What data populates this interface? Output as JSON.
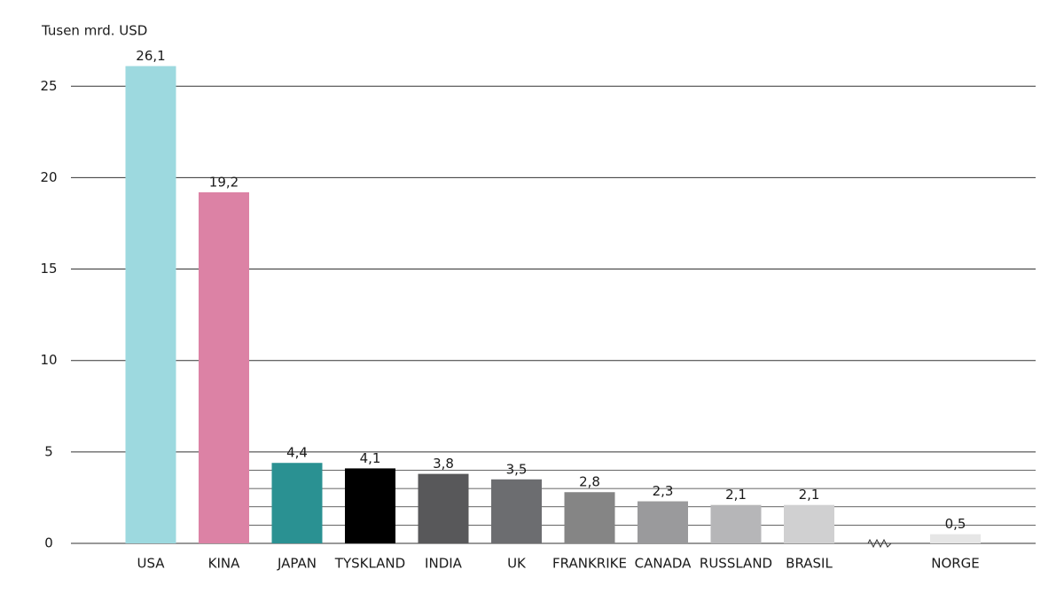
{
  "chart_data": {
    "type": "bar",
    "y_label": "Tusen mrd. USD",
    "categories": [
      "USA",
      "KINA",
      "JAPAN",
      "TYSKLAND",
      "INDIA",
      "UK",
      "FRANKRIKE",
      "CANADA",
      "RUSSLAND",
      "BRASIL",
      null,
      "NORGE"
    ],
    "values": [
      26.1,
      19.2,
      4.4,
      4.1,
      3.8,
      3.5,
      2.8,
      2.3,
      2.1,
      2.1,
      null,
      0.5
    ],
    "value_labels": [
      "26,1",
      "19,2",
      "4,4",
      "4,1",
      "3,8",
      "3,5",
      "2,8",
      "2,3",
      "2,1",
      "2,1",
      null,
      "0,5"
    ],
    "colors": [
      "#9dd9df",
      "#dc82a5",
      "#2a9192",
      "#000000",
      "#58585a",
      "#6c6d70",
      "#858585",
      "#9a9a9c",
      "#b6b6b8",
      "#d0d0d1",
      null,
      "#e6e6e6"
    ],
    "ylim": [
      0,
      27
    ],
    "yticks": [
      0,
      5,
      10,
      15,
      20,
      25
    ],
    "minor_gridlines": [
      1,
      2,
      3,
      4
    ],
    "grid": true
  }
}
